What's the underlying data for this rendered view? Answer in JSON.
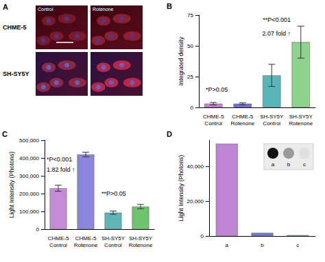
{
  "chart_data": [
    {
      "type": "image_grid",
      "title": "A",
      "columns": [
        "Control",
        "Rotenone"
      ],
      "rows": [
        "CHME-5",
        "SH-SY5Y"
      ]
    },
    {
      "type": "bar",
      "title": "B",
      "categories": [
        "CHME-5\nControl",
        "CHME-5\nRotenone",
        "SH-SY5Y\nControl",
        "SH-SY5Y\nRotenone"
      ],
      "values": [
        3,
        3,
        26,
        53
      ],
      "errors": [
        1,
        0.8,
        9,
        13
      ],
      "colors": [
        "#c77fd6",
        "#6b6fd6",
        "#58b6b8",
        "#8ed28e"
      ],
      "ylabel": "Integrated density",
      "ylim": [
        0,
        75
      ],
      "yticks": [
        0,
        25,
        50,
        75
      ],
      "grid": false,
      "annotations": [
        "*P>0.05",
        "**P<0.001",
        "2.07 fold ↑"
      ]
    },
    {
      "type": "bar",
      "title": "C",
      "categories": [
        "CHME-5\nControl",
        "CHME-5\nRotenone",
        "SH-SY5Y\nControl",
        "SH-SY5Y\nRotenone"
      ],
      "values": [
        230000,
        420000,
        93000,
        127000
      ],
      "errors": [
        17000,
        13000,
        9000,
        12000
      ],
      "colors": [
        "#c58ad8",
        "#8a86dc",
        "#5fb5b5",
        "#6cc46c"
      ],
      "ylabel": "Light Intensity (Photons)",
      "ylim": [
        0,
        500000
      ],
      "yticks": [
        0,
        100000,
        200000,
        300000,
        400000,
        500000
      ],
      "grid": false,
      "annotations": [
        "*P<0.001",
        "1.82 fold ↑",
        "**P>0.05"
      ]
    },
    {
      "type": "bar",
      "title": "D",
      "categories": [
        "a",
        "b",
        "c"
      ],
      "values": [
        53000,
        1800,
        500
      ],
      "colors": [
        "#c084d4",
        "#6f78d8",
        "#6cc46c"
      ],
      "ylabel": "Light Intensity (Photons)",
      "ylim": [
        0,
        55000
      ],
      "yticks": [
        0,
        20000,
        40000
      ],
      "grid": false,
      "inset_labels": [
        "a",
        "b",
        "c"
      ]
    }
  ]
}
